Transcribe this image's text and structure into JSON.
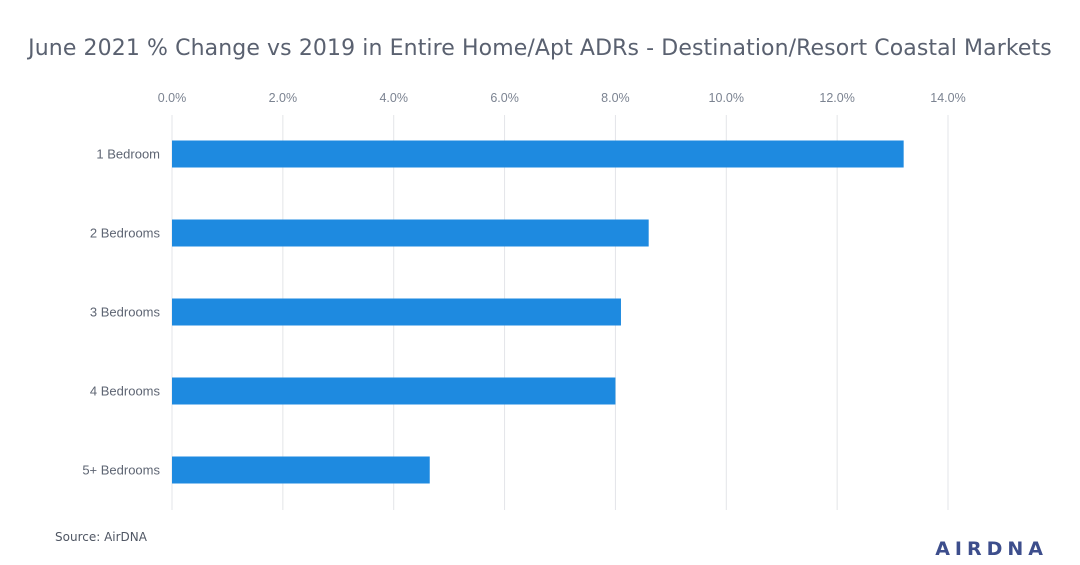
{
  "chart_data": {
    "type": "bar",
    "orientation": "horizontal",
    "title": "June 2021 % Change vs 2019 in Entire Home/Apt ADRs  - Destination/Resort Coastal Markets",
    "categories": [
      "1 Bedroom",
      "2 Bedrooms",
      "3 Bedrooms",
      "4 Bedrooms",
      "5+ Bedrooms"
    ],
    "values": [
      13.2,
      8.6,
      8.1,
      8.0,
      4.65
    ],
    "xlim": [
      0,
      14
    ],
    "x_ticks": [
      0,
      2,
      4,
      6,
      8,
      10,
      12,
      14
    ],
    "x_tick_labels": [
      "0.0%",
      "2.0%",
      "4.0%",
      "6.0%",
      "8.0%",
      "10.0%",
      "12.0%",
      "14.0%"
    ],
    "x_axis_position": "top",
    "grid": true,
    "legend": "none",
    "bar_color": "#1e8ae0"
  },
  "footer": {
    "source": "Source: AirDNA",
    "logo": "AIRDNA"
  }
}
